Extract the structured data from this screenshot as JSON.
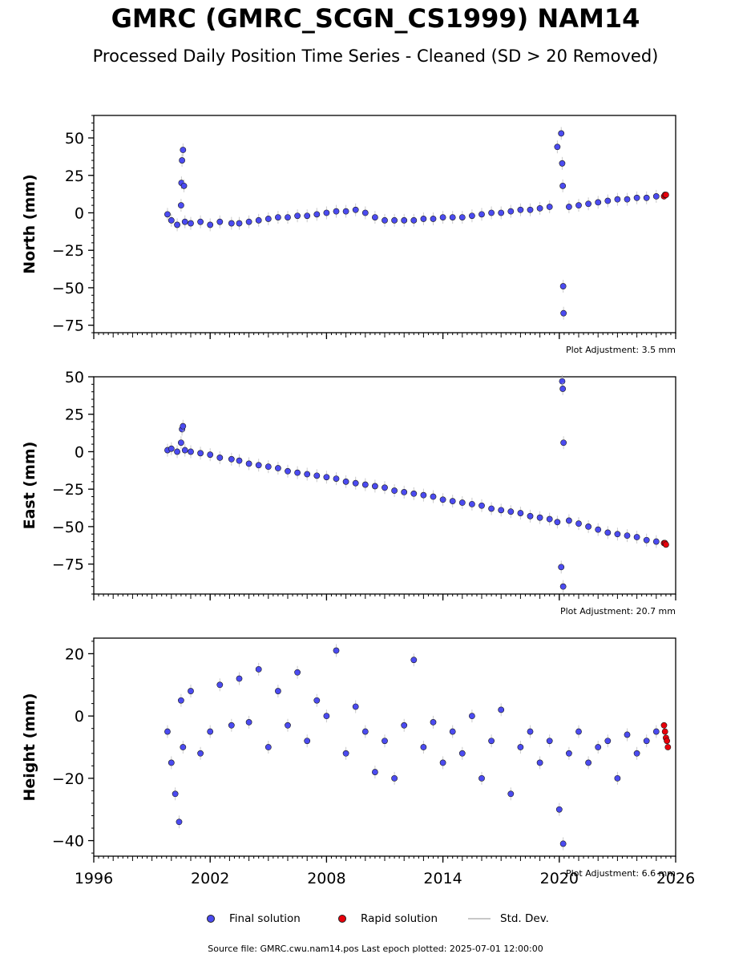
{
  "title": "GMRC (GMRC_SCGN_CS1999) NAM14",
  "subtitle": "Processed Daily Position Time Series - Cleaned (SD > 20 Removed)",
  "source_note": "Source file: GMRC.cwu.nam14.pos  Last epoch plotted: 2025-07-01 12:00:00",
  "colors": {
    "final": "#4b4bf0",
    "rapid": "#e8000b",
    "stddev": "#b4b4b4"
  },
  "legend": {
    "final": "Final solution",
    "rapid": "Rapid solution",
    "stddev": "Std. Dev."
  },
  "chart_data": [
    {
      "type": "scatter",
      "ylabel": "North (mm)",
      "adjustment": "Plot Adjustment: 3.5 mm",
      "xlim": [
        1996,
        2026
      ],
      "ylim": [
        -80,
        65
      ],
      "yticks": [
        50,
        25,
        0,
        -25,
        -50,
        -75
      ],
      "x_ticks": [
        "1996",
        "2002",
        "2008",
        "2014",
        "2020",
        "2026"
      ],
      "series": [
        {
          "name": "Final solution",
          "x": [
            1999.8,
            2000.0,
            2000.3,
            2000.5,
            2000.52,
            2000.55,
            2000.6,
            2000.65,
            2000.7,
            2001.0,
            2001.5,
            2002.0,
            2002.5,
            2003.1,
            2003.5,
            2004.0,
            2004.5,
            2005.0,
            2005.5,
            2006.0,
            2006.5,
            2007.0,
            2007.5,
            2008.0,
            2008.5,
            2009.0,
            2009.5,
            2010.0,
            2010.5,
            2011.0,
            2011.5,
            2012.0,
            2012.5,
            2013.0,
            2013.5,
            2014.0,
            2014.5,
            2015.0,
            2015.5,
            2016.0,
            2016.5,
            2017.0,
            2017.5,
            2018.0,
            2018.5,
            2019.0,
            2019.5,
            2019.9,
            2020.1,
            2020.15,
            2020.18,
            2020.2,
            2020.22,
            2020.5,
            2021.0,
            2021.5,
            2022.0,
            2022.5,
            2023.0,
            2023.5,
            2024.0,
            2024.5,
            2025.0
          ],
          "y": [
            -1,
            -5,
            -8,
            5,
            20,
            35,
            42,
            18,
            -6,
            -7,
            -6,
            -8,
            -6,
            -7,
            -7,
            -6,
            -5,
            -4,
            -3,
            -3,
            -2,
            -2,
            -1,
            0,
            1,
            1,
            2,
            0,
            -3,
            -5,
            -5,
            -5,
            -5,
            -4,
            -4,
            -3,
            -3,
            -3,
            -2,
            -1,
            0,
            0,
            1,
            2,
            2,
            3,
            4,
            44,
            53,
            33,
            18,
            -49,
            -67,
            4,
            5,
            6,
            7,
            8,
            9,
            9,
            10,
            10,
            11
          ]
        },
        {
          "name": "Rapid solution",
          "x": [
            2025.4,
            2025.45,
            2025.5
          ],
          "y": [
            11,
            12,
            12
          ]
        }
      ]
    },
    {
      "type": "scatter",
      "ylabel": "East (mm)",
      "adjustment": "Plot Adjustment: 20.7 mm",
      "xlim": [
        1996,
        2026
      ],
      "ylim": [
        -95,
        50
      ],
      "yticks": [
        50,
        25,
        0,
        -25,
        -50,
        -75
      ],
      "x_ticks": [
        "1996",
        "2002",
        "2008",
        "2014",
        "2020",
        "2026"
      ],
      "series": [
        {
          "name": "Final solution",
          "x": [
            1999.8,
            2000.0,
            2000.3,
            2000.5,
            2000.55,
            2000.6,
            2000.7,
            2001.0,
            2001.5,
            2002.0,
            2002.5,
            2003.1,
            2003.5,
            2004.0,
            2004.5,
            2005.0,
            2005.5,
            2006.0,
            2006.5,
            2007.0,
            2007.5,
            2008.0,
            2008.5,
            2009.0,
            2009.5,
            2010.0,
            2010.5,
            2011.0,
            2011.5,
            2012.0,
            2012.5,
            2013.0,
            2013.5,
            2014.0,
            2014.5,
            2015.0,
            2015.5,
            2016.0,
            2016.5,
            2017.0,
            2017.5,
            2018.0,
            2018.5,
            2019.0,
            2019.5,
            2019.9,
            2020.1,
            2020.15,
            2020.18,
            2020.2,
            2020.22,
            2020.5,
            2021.0,
            2021.5,
            2022.0,
            2022.5,
            2023.0,
            2023.5,
            2024.0,
            2024.5,
            2025.0
          ],
          "y": [
            1,
            2,
            0,
            6,
            15,
            17,
            1,
            0,
            -1,
            -2,
            -4,
            -5,
            -6,
            -8,
            -9,
            -10,
            -11,
            -13,
            -14,
            -15,
            -16,
            -17,
            -18,
            -20,
            -21,
            -22,
            -23,
            -24,
            -26,
            -27,
            -28,
            -29,
            -30,
            -32,
            -33,
            -34,
            -35,
            -36,
            -38,
            -39,
            -40,
            -41,
            -43,
            -44,
            -45,
            -47,
            -77,
            47,
            42,
            -90,
            6,
            -46,
            -48,
            -50,
            -52,
            -54,
            -55,
            -56,
            -57,
            -59,
            -60
          ]
        },
        {
          "name": "Rapid solution",
          "x": [
            2025.4,
            2025.45,
            2025.5
          ],
          "y": [
            -61,
            -61,
            -62
          ]
        }
      ]
    },
    {
      "type": "scatter",
      "ylabel": "Height (mm)",
      "adjustment": "Plot Adjustment: 6.6 mm",
      "xlim": [
        1996,
        2026
      ],
      "ylim": [
        -45,
        25
      ],
      "yticks": [
        20,
        0,
        -20,
        -40
      ],
      "x_ticks": [
        "1996",
        "2002",
        "2008",
        "2014",
        "2020",
        "2026"
      ],
      "series": [
        {
          "name": "Final solution",
          "x": [
            1999.8,
            2000.0,
            2000.2,
            2000.4,
            2000.5,
            2000.6,
            2001.0,
            2001.5,
            2002.0,
            2002.5,
            2003.1,
            2003.5,
            2004.0,
            2004.5,
            2005.0,
            2005.5,
            2006.0,
            2006.5,
            2007.0,
            2007.5,
            2008.0,
            2008.5,
            2009.0,
            2009.5,
            2010.0,
            2010.5,
            2011.0,
            2011.5,
            2012.0,
            2012.5,
            2013.0,
            2013.5,
            2014.0,
            2014.5,
            2015.0,
            2015.5,
            2016.0,
            2016.5,
            2017.0,
            2017.5,
            2018.0,
            2018.5,
            2019.0,
            2019.5,
            2020.0,
            2020.2,
            2020.5,
            2021.0,
            2021.5,
            2022.0,
            2022.5,
            2023.0,
            2023.5,
            2024.0,
            2024.5,
            2025.0
          ],
          "y": [
            -5,
            -15,
            -25,
            -34,
            5,
            -10,
            8,
            -12,
            -5,
            10,
            -3,
            12,
            -2,
            15,
            -10,
            8,
            -3,
            14,
            -8,
            5,
            0,
            21,
            -12,
            3,
            -5,
            -18,
            -8,
            -20,
            -3,
            18,
            -10,
            -2,
            -15,
            -5,
            -12,
            0,
            -20,
            -8,
            2,
            -25,
            -10,
            -5,
            -15,
            -8,
            -30,
            -41,
            -12,
            -5,
            -15,
            -10,
            -8,
            -20,
            -6,
            -12,
            -8,
            -5
          ]
        },
        {
          "name": "Rapid solution",
          "x": [
            2025.4,
            2025.45,
            2025.5,
            2025.55,
            2025.6
          ],
          "y": [
            -3,
            -5,
            -7,
            -8,
            -10
          ]
        }
      ]
    }
  ]
}
